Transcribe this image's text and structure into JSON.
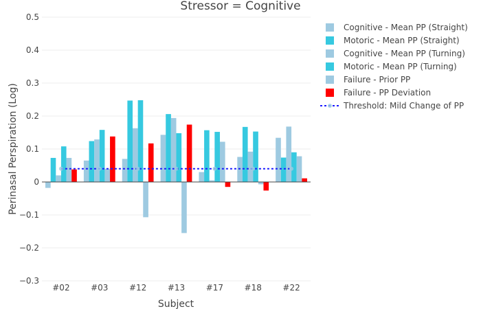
{
  "chart_data": {
    "type": "bar",
    "title": "Stressor = Cognitive",
    "xlabel": "Subject",
    "ylabel": "Perinasal Perspiration (Log)",
    "ylim": [
      -0.3,
      0.5
    ],
    "yticks": [
      -0.3,
      -0.2,
      -0.1,
      0,
      0.1,
      0.2,
      0.3,
      0.4,
      0.5
    ],
    "ytick_labels": [
      "−0.3",
      "−0.2",
      "−0.1",
      "0",
      "0.1",
      "0.2",
      "0.3",
      "0.4",
      "0.5"
    ],
    "grid": true,
    "legend_position": "top-right",
    "categories": [
      "#02",
      "#03",
      "#12",
      "#13",
      "#17",
      "#18",
      "#22"
    ],
    "series": [
      {
        "name": "Cognitive - Mean PP (Straight)",
        "color": "#9ecae1",
        "values": [
          -0.018,
          0.065,
          0.07,
          0.143,
          0.03,
          0.076,
          0.134
        ]
      },
      {
        "name": "Motoric - Mean PP (Straight)",
        "color": "#36c9e0",
        "values": [
          0.073,
          0.124,
          0.247,
          0.206,
          0.157,
          0.167,
          0.074
        ]
      },
      {
        "name": "Cognitive - Mean PP (Turning)",
        "color": "#9ecae1",
        "values": [
          0.02,
          0.129,
          0.163,
          0.194,
          0.005,
          0.092,
          0.168
        ]
      },
      {
        "name": "Motoric - Mean PP (Turning)",
        "color": "#36c9e0",
        "values": [
          0.108,
          0.158,
          0.248,
          0.148,
          0.152,
          0.153,
          0.09
        ]
      },
      {
        "name": "Failure - Prior PP",
        "color": "#9ecae1",
        "values": [
          0.073,
          0.04,
          -0.107,
          -0.155,
          0.122,
          -0.007,
          0.078
        ]
      },
      {
        "name": "Failure - PP Deviation",
        "color": "#ff0000",
        "values": [
          0.038,
          0.138,
          0.117,
          0.174,
          -0.015,
          -0.026,
          0.011
        ]
      }
    ],
    "threshold": {
      "name": "Threshold: Mild Change of PP",
      "value": 0.04,
      "color": "#1a1aff"
    }
  }
}
